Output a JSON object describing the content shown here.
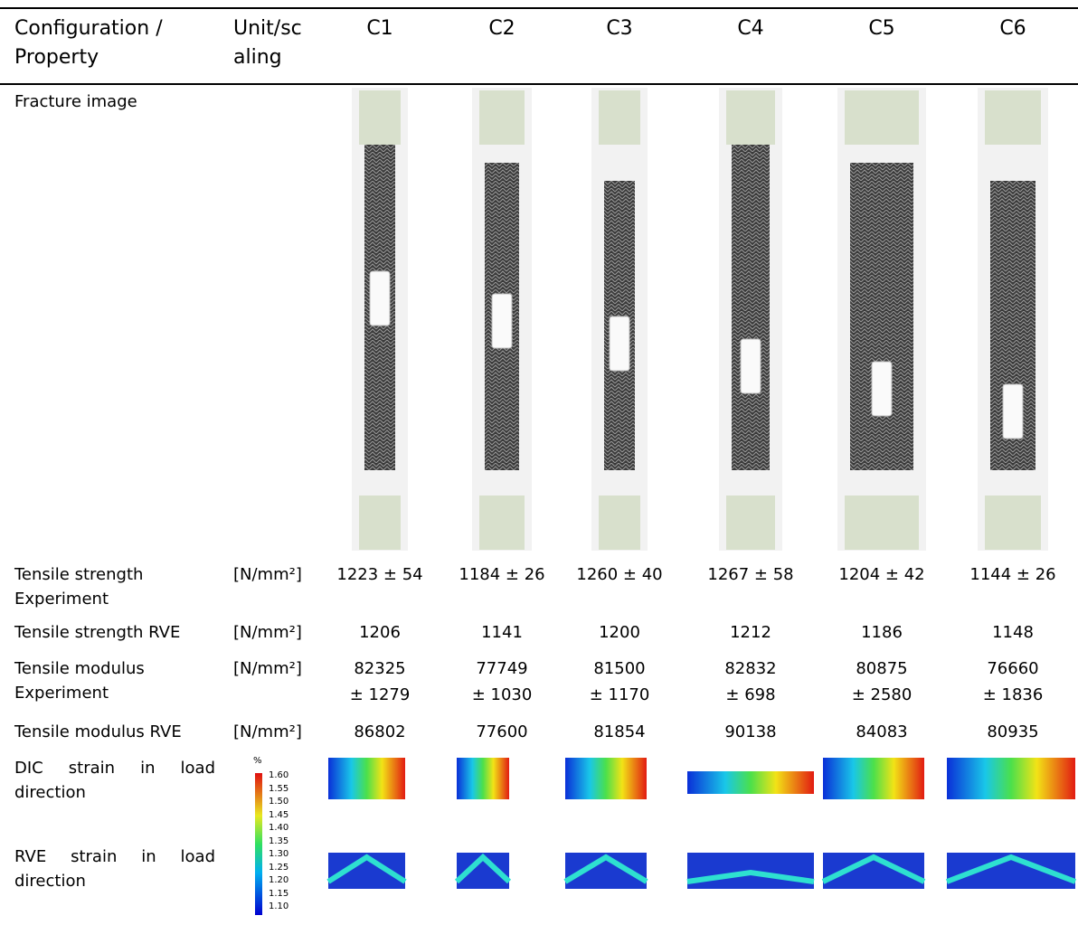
{
  "header": [
    "Configuration / Property",
    "Unit/sc aling",
    "C1",
    "C2",
    "C3",
    "C4",
    "C5",
    "C6"
  ],
  "rows": [
    {
      "label": "Fracture image"
    },
    {
      "label": "Tensile strength Experiment",
      "unit": "[N/mm²]",
      "cells": [
        [
          "1223 ± 54"
        ],
        [
          "1184 ± 26"
        ],
        [
          "1260 ± 40"
        ],
        [
          "1267 ± 58"
        ],
        [
          "1204 ± 42"
        ],
        [
          "1144 ± 26"
        ]
      ]
    },
    {
      "label": "Tensile strength RVE",
      "unit": "[N/mm²]",
      "cells": [
        [
          "1206"
        ],
        [
          "1141"
        ],
        [
          "1200"
        ],
        [
          "1212"
        ],
        [
          "1186"
        ],
        [
          "1148"
        ]
      ]
    },
    {
      "label": "Tensile modulus Experiment",
      "unit": "[N/mm²]",
      "cells": [
        [
          "82325",
          "± 1279"
        ],
        [
          "77749",
          "± 1030"
        ],
        [
          "81500",
          "± 1170"
        ],
        [
          "82832",
          "± 698"
        ],
        [
          "80875",
          "± 2580"
        ],
        [
          "76660",
          "± 1836"
        ]
      ]
    },
    {
      "label": "Tensile modulus RVE",
      "unit": "[N/mm²]",
      "cells": [
        [
          "86802"
        ],
        [
          "77600"
        ],
        [
          "81854"
        ],
        [
          "90138"
        ],
        [
          "84083"
        ],
        [
          "80935"
        ]
      ]
    },
    {
      "label": "DIC strain in load direction"
    },
    {
      "label": "RVE strain in load direction"
    }
  ],
  "colorbar": {
    "unit": "%",
    "ticks": [
      "1.60",
      "1.55",
      "1.50",
      "1.45",
      "1.40",
      "1.35",
      "1.30",
      "1.25",
      "1.20",
      "1.15",
      "1.10"
    ]
  }
}
